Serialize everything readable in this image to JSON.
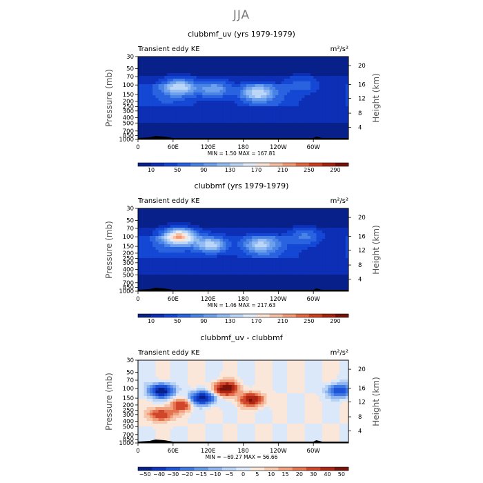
{
  "figure": {
    "title": "JJA"
  },
  "chart_data": [
    {
      "type": "heatmap",
      "title": "clubbmf_uv (yrs 1979-1979)",
      "left_label": "Transient eddy KE",
      "units": "m²/s²",
      "ylabel": "Pressure (mb)",
      "ylabel_right": "Height (km)",
      "y_ticks": [
        "30",
        "50",
        "70",
        "100",
        "150",
        "200",
        "250",
        "300",
        "400",
        "500",
        "700",
        "850",
        "1000"
      ],
      "y_right_ticks": [
        "20",
        "16",
        "12",
        "8",
        "4"
      ],
      "x_ticks": [
        "0",
        "60E",
        "120E",
        "180",
        "120W",
        "60W"
      ],
      "stats": "MIN =     1.50   MAX = 167.81",
      "min": 1.5,
      "max": 167.81,
      "colorbar_labels": [
        "10",
        "50",
        "90",
        "130",
        "170",
        "210",
        "250",
        "290"
      ],
      "field": [
        {
          "lon": 70,
          "p": 110,
          "value": 150
        },
        {
          "lon": 130,
          "p": 120,
          "value": 110
        },
        {
          "lon": 205,
          "p": 140,
          "value": 150
        },
        {
          "lon": 280,
          "p": 100,
          "value": 70
        }
      ]
    },
    {
      "type": "heatmap",
      "title": "clubbmf (yrs 1979-1979)",
      "left_label": "Transient eddy KE",
      "units": "m²/s²",
      "ylabel": "Pressure (mb)",
      "ylabel_right": "Height (km)",
      "y_ticks": [
        "30",
        "50",
        "70",
        "100",
        "150",
        "200",
        "250",
        "300",
        "400",
        "500",
        "700",
        "850",
        "1000"
      ],
      "y_right_ticks": [
        "20",
        "16",
        "12",
        "8",
        "4"
      ],
      "x_ticks": [
        "0",
        "60E",
        "120E",
        "180",
        "120W",
        "60W"
      ],
      "stats": "MIN =     1.46   MAX = 217.63",
      "min": 1.46,
      "max": 217.63,
      "colorbar_labels": [
        "10",
        "50",
        "90",
        "130",
        "170",
        "210",
        "250",
        "290"
      ],
      "field": [
        {
          "lon": 70,
          "p": 100,
          "value": 210
        },
        {
          "lon": 125,
          "p": 140,
          "value": 140
        },
        {
          "lon": 210,
          "p": 140,
          "value": 140
        },
        {
          "lon": 285,
          "p": 100,
          "value": 80
        }
      ]
    },
    {
      "type": "heatmap",
      "title": "clubbmf_uv - clubbmf",
      "left_label": "Transient eddy KE",
      "units": "m²/s²",
      "ylabel": "Pressure (mb)",
      "ylabel_right": "Height (km)",
      "y_ticks": [
        "30",
        "50",
        "70",
        "100",
        "150",
        "200",
        "250",
        "300",
        "400",
        "500",
        "700",
        "850",
        "1000"
      ],
      "y_right_ticks": [
        "20",
        "16",
        "12",
        "8",
        "4"
      ],
      "x_ticks": [
        "0",
        "60E",
        "120E",
        "180",
        "120W",
        "60W"
      ],
      "stats": "MIN = −69.27   MAX =   56.66",
      "min": -69.27,
      "max": 56.66,
      "colorbar_labels": [
        "−50",
        "−40",
        "−30",
        "−20",
        "−15",
        "−10",
        "−5",
        "0",
        "5",
        "10",
        "15",
        "20",
        "30",
        "40",
        "50"
      ],
      "field": [
        {
          "lon": 40,
          "p": 110,
          "value": -60
        },
        {
          "lon": 110,
          "p": 150,
          "value": -55
        },
        {
          "lon": 150,
          "p": 100,
          "value": 50
        },
        {
          "lon": 195,
          "p": 160,
          "value": 40
        },
        {
          "lon": 40,
          "p": 300,
          "value": 30
        },
        {
          "lon": 75,
          "p": 200,
          "value": 25
        },
        {
          "lon": 345,
          "p": 110,
          "value": -40
        }
      ]
    }
  ]
}
